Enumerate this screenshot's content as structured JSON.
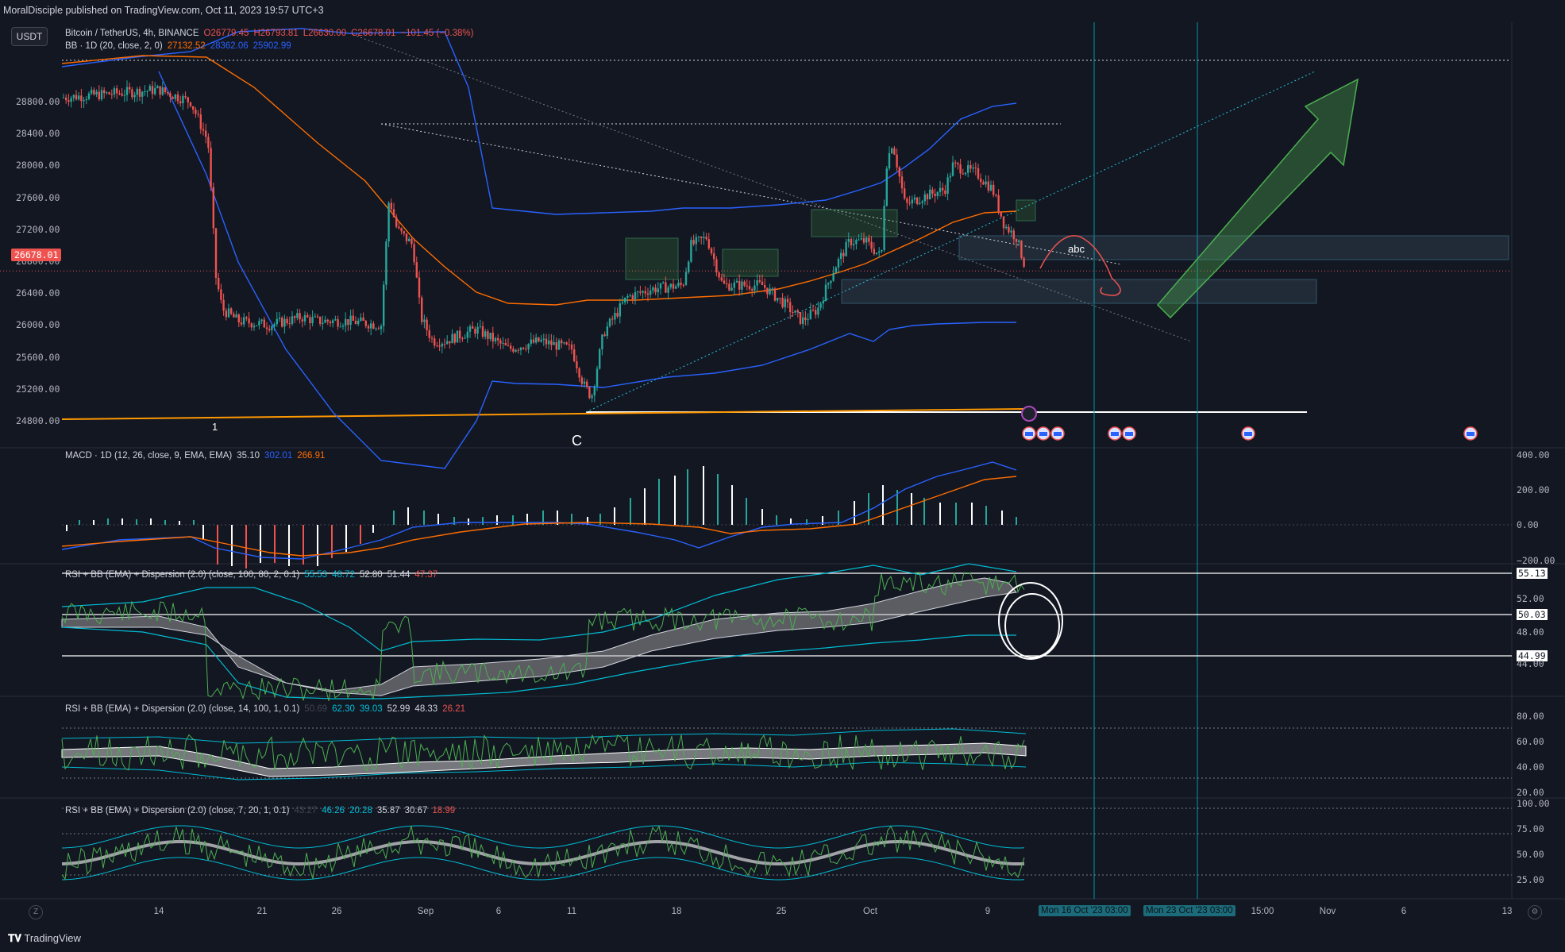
{
  "header": {
    "publisher": "MoralDisciple published on TradingView.com, Oct 11, 2023 19:57 UTC+3"
  },
  "currency_button": "USDT",
  "main_legend": {
    "symbol": "Bitcoin / TetherUS, 4h, BINANCE",
    "open": "O26779.45",
    "high": "H26793.81",
    "low": "L26630.00",
    "close": "C26678.01",
    "change": "−101.45 (−0.38%)",
    "bb_label": "BB · 1D (20, close, 2, 0)",
    "bb_v1": "27132.52",
    "bb_v2": "28362.06",
    "bb_v3": "25902.99"
  },
  "price_axis": [
    "28800.00",
    "28400.00",
    "28000.00",
    "27600.00",
    "27200.00",
    "26800.00",
    "26400.00",
    "26000.00",
    "25600.00",
    "25200.00",
    "24800.00"
  ],
  "current_price": "26678.01",
  "chart_annotations": {
    "wave_1": "1",
    "wave_c": "C",
    "abc": "abc"
  },
  "macd": {
    "label": "MACD · 1D (12, 26, close, 9, EMA, EMA)",
    "v1": "35.10",
    "v2": "302.01",
    "v3": "266.91",
    "axis": [
      "400.00",
      "200.00",
      "0.00",
      "−200.00"
    ]
  },
  "rsi1": {
    "label": "RSI + BB (EMA) + Dispersion (2.0) (close, 100, 80, 2, 0.1)",
    "v1": "55.53",
    "v2": "48.72",
    "v3": "52.80",
    "v4": "51.44",
    "v5": "47.37",
    "axis": [
      "55.13",
      "52.00",
      "50.03",
      "48.00",
      "44.99",
      "44.00"
    ]
  },
  "rsi2": {
    "label": "RSI + BB (EMA) + Dispersion (2.0) (close, 14, 100, 1, 0.1)",
    "v0": "50.69",
    "v1": "62.30",
    "v2": "39.03",
    "v3": "52.99",
    "v4": "48.33",
    "v5": "26.21",
    "axis": [
      "80.00",
      "60.00",
      "40.00",
      "20.00"
    ]
  },
  "rsi3": {
    "label": "RSI + BB (EMA) + Dispersion (2.0) (close, 7, 20, 1, 0.1)",
    "v0": "43.27",
    "v1": "46.26",
    "v2": "20.28",
    "v3": "35.87",
    "v4": "30.67",
    "v5": "18.99",
    "axis": [
      "100.00",
      "75.00",
      "50.00",
      "25.00"
    ]
  },
  "time_axis": [
    "14",
    "21",
    "26",
    "Sep",
    "6",
    "11",
    "18",
    "25",
    "Oct",
    "9",
    "15:00",
    "Nov",
    "6",
    "13"
  ],
  "time_markers": [
    "Mon 16 Oct '23   03:00",
    "Mon 23 Oct '23   03:00"
  ],
  "footer": {
    "brand": "TradingView"
  },
  "colors": {
    "background": "#131722",
    "up": "#26a69a",
    "down": "#ef5350",
    "bb_band": "#2962ff",
    "bb_basis": "#ff6d00",
    "pane_border": "#2a2e39"
  }
}
